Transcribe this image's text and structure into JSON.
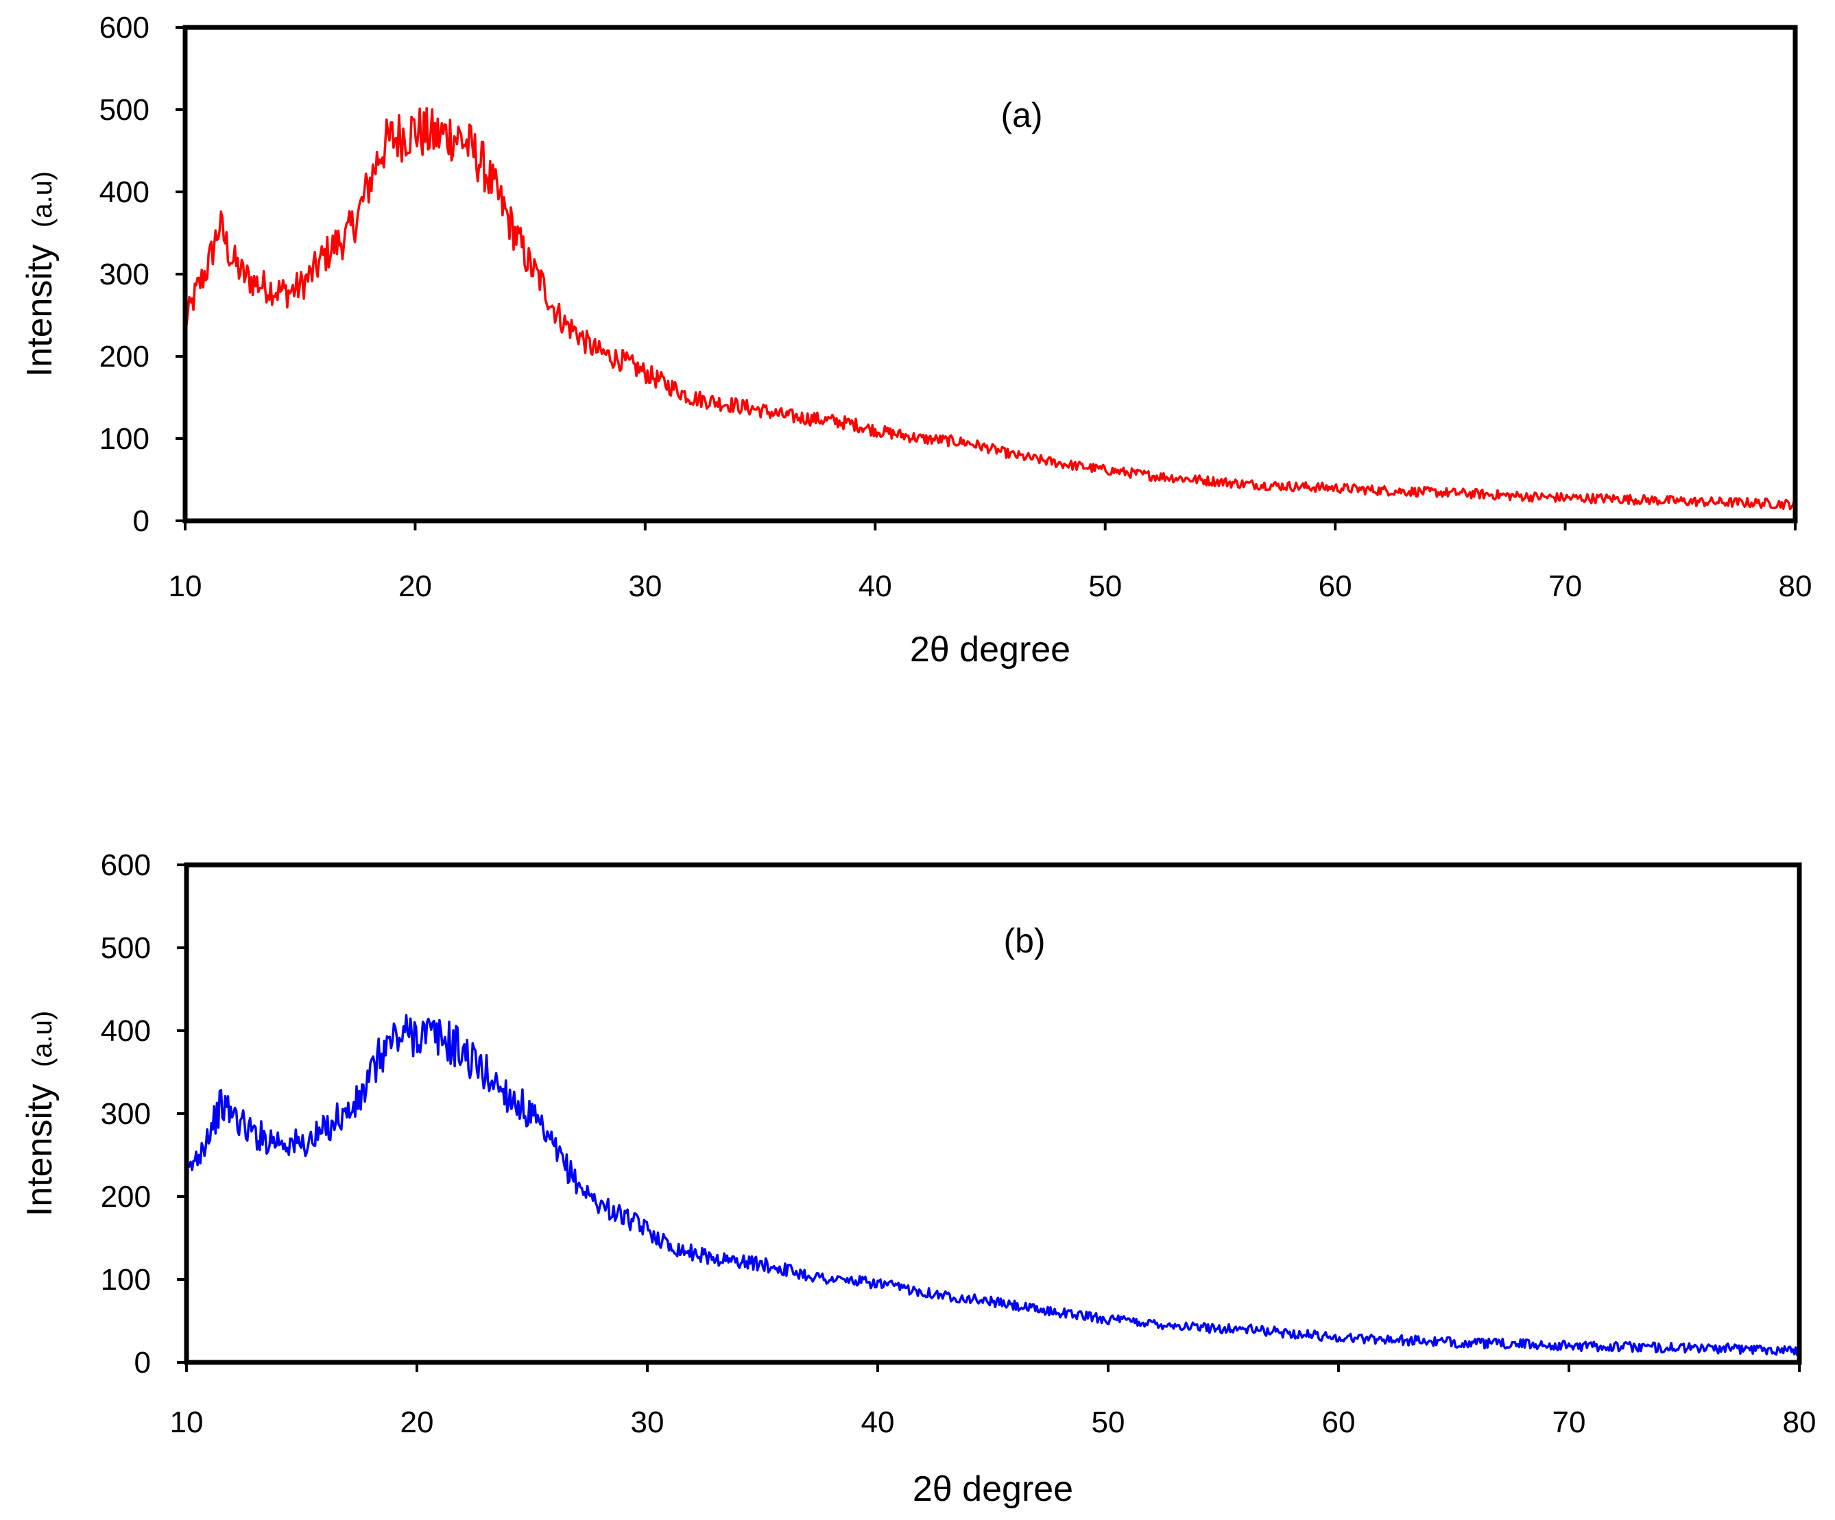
{
  "chart_data": [
    {
      "type": "line",
      "panel_label": "(a)",
      "ylabel": "Intensity",
      "ylabel_unit": "(a.u)",
      "xlabel": "2θ degree",
      "xlim": [
        10,
        80
      ],
      "ylim": [
        0,
        600
      ],
      "x_ticks": [
        "10",
        "20",
        "30",
        "40",
        "50",
        "60",
        "70",
        "80"
      ],
      "y_ticks": [
        "0",
        "100",
        "200",
        "300",
        "400",
        "500",
        "600"
      ],
      "grid": false,
      "legend": "none",
      "series": [
        {
          "name": "(a)",
          "color": "#ff0000",
          "x": [
            10,
            10.5,
            11,
            11.5,
            12,
            12.5,
            13,
            13.5,
            14,
            14.5,
            15,
            15.5,
            16,
            16.5,
            17,
            17.5,
            18,
            18.5,
            19,
            19.5,
            20,
            20.5,
            21,
            21.5,
            22,
            22.5,
            23,
            23.5,
            24,
            24.5,
            25,
            25.5,
            26,
            26.5,
            27,
            27.5,
            28,
            29,
            30,
            31,
            32,
            33,
            34,
            35,
            36,
            37,
            38,
            39,
            40,
            41,
            42,
            43,
            44,
            45,
            46,
            47,
            48,
            50,
            52,
            54,
            56,
            58,
            60,
            62,
            64,
            66,
            68,
            70,
            72,
            74,
            76,
            78,
            80
          ],
          "values": [
            240,
            280,
            310,
            360,
            320,
            300,
            290,
            285,
            280,
            278,
            285,
            300,
            320,
            335,
            345,
            370,
            410,
            450,
            465,
            470,
            475,
            470,
            468,
            470,
            465,
            450,
            430,
            400,
            370,
            340,
            310,
            290,
            260,
            240,
            230,
            215,
            205,
            195,
            180,
            165,
            150,
            145,
            140,
            135,
            128,
            125,
            122,
            118,
            110,
            105,
            100,
            98,
            95,
            88,
            80,
            75,
            70,
            62,
            55,
            50,
            45,
            42,
            40,
            37,
            35,
            33,
            30,
            28,
            27,
            25,
            23,
            22,
            20
          ]
        }
      ]
    },
    {
      "type": "line",
      "panel_label": "(b)",
      "ylabel": "Intensity",
      "ylabel_unit": "(a.u)",
      "xlabel": "2θ degree",
      "xlim": [
        10,
        80
      ],
      "ylim": [
        0,
        600
      ],
      "x_ticks": [
        "10",
        "20",
        "30",
        "40",
        "50",
        "60",
        "70",
        "80"
      ],
      "y_ticks": [
        "0",
        "100",
        "200",
        "300",
        "400",
        "500",
        "600"
      ],
      "grid": false,
      "legend": "none",
      "series": [
        {
          "name": "(b)",
          "color": "#0000ff",
          "x": [
            10,
            10.5,
            11,
            11.5,
            12,
            12.5,
            13,
            13.5,
            14,
            14.5,
            15,
            15.5,
            16,
            16.5,
            17,
            17.5,
            18,
            18.5,
            19,
            19.5,
            20,
            20.5,
            21,
            21.5,
            22,
            22.5,
            23,
            23.5,
            24,
            24.5,
            25,
            25.5,
            26,
            26.5,
            27,
            27.5,
            28,
            29,
            30,
            31,
            32,
            33,
            34,
            35,
            36,
            37,
            38,
            39,
            40,
            41,
            42,
            43,
            44,
            45,
            46,
            47,
            48,
            50,
            52,
            54,
            56,
            58,
            60,
            62,
            64,
            66,
            68,
            70,
            72,
            74,
            76,
            78,
            80
          ],
          "values": [
            225,
            250,
            280,
            310,
            300,
            285,
            275,
            270,
            268,
            265,
            262,
            268,
            280,
            295,
            300,
            315,
            345,
            375,
            390,
            395,
            398,
            395,
            390,
            385,
            375,
            360,
            348,
            335,
            322,
            310,
            295,
            275,
            255,
            235,
            215,
            200,
            190,
            175,
            160,
            140,
            132,
            125,
            122,
            118,
            112,
            105,
            100,
            98,
            95,
            90,
            85,
            80,
            77,
            73,
            68,
            63,
            60,
            52,
            47,
            42,
            40,
            35,
            30,
            28,
            25,
            23,
            22,
            20,
            19,
            18,
            17,
            16,
            15
          ]
        }
      ]
    }
  ]
}
